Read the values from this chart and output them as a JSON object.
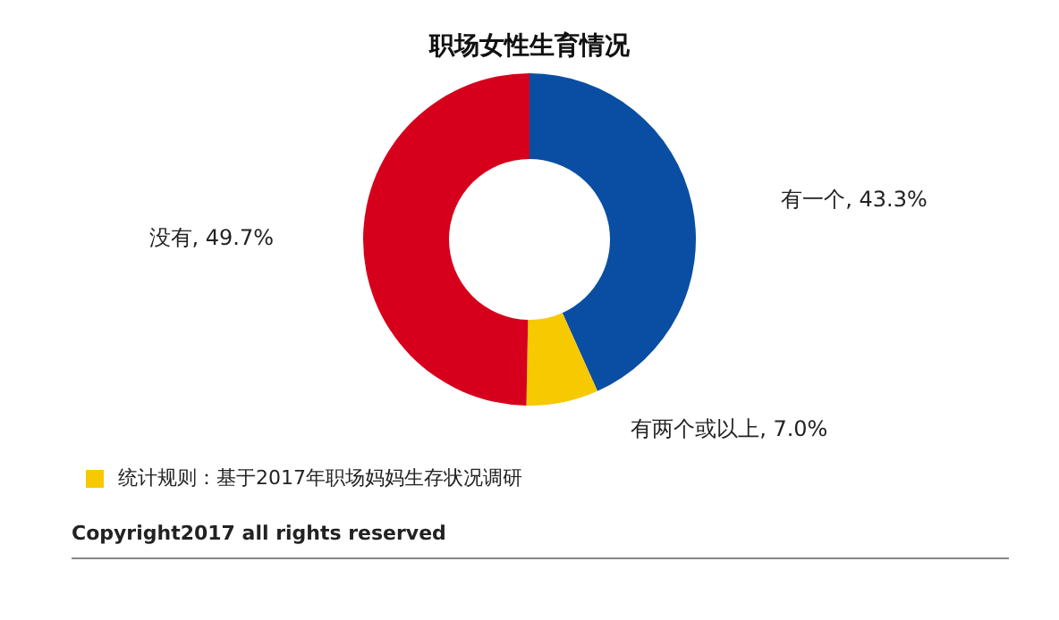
{
  "chart_data": {
    "type": "donut",
    "title": "职场女性生育情况",
    "categories": [
      "有一个",
      "有两个或以上",
      "没有"
    ],
    "values": [
      43.3,
      7.0,
      49.7
    ],
    "value_labels": [
      "43.3%",
      "7.0%",
      "49.7%"
    ],
    "colors": [
      "#0a4ea3",
      "#f6c900",
      "#d6001c"
    ],
    "legend": false,
    "annotations": [
      "统计规则：基于2017年职场妈妈生存状况调研",
      "Copyright2017 all rights reserved"
    ]
  }
}
